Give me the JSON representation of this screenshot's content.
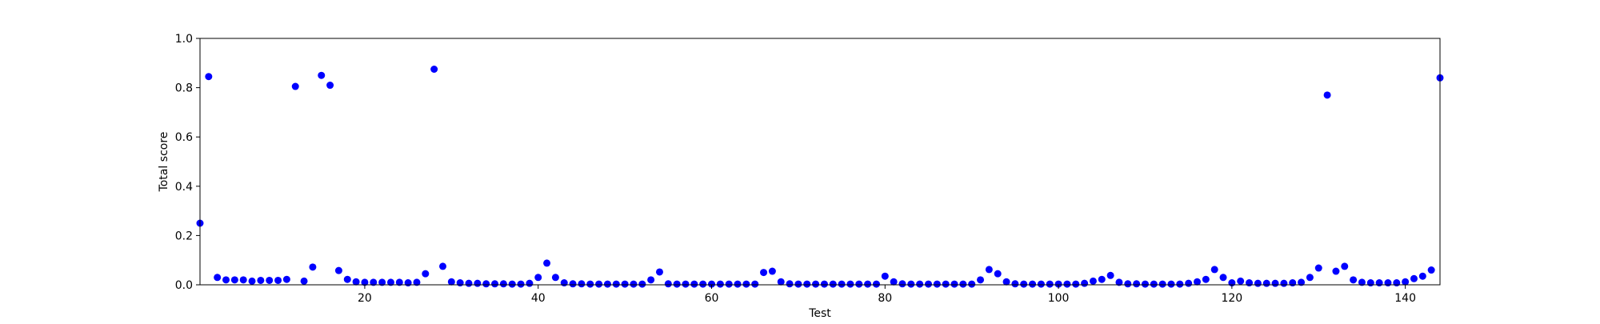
{
  "chart_data": {
    "type": "scatter",
    "title": "",
    "xlabel": "Test",
    "ylabel": "Total score",
    "xlim": [
      1,
      144
    ],
    "ylim": [
      0,
      1.0
    ],
    "grid": false,
    "legend": "none",
    "marker_color": "#0000ff",
    "x_ticks": [
      {
        "value": 20,
        "label": "20"
      },
      {
        "value": 40,
        "label": "40"
      },
      {
        "value": 60,
        "label": "60"
      },
      {
        "value": 80,
        "label": "80"
      },
      {
        "value": 100,
        "label": "100"
      },
      {
        "value": 120,
        "label": "120"
      },
      {
        "value": 140,
        "label": "140"
      }
    ],
    "y_ticks": [
      {
        "value": 0.0,
        "label": "0.0"
      },
      {
        "value": 0.2,
        "label": "0.2"
      },
      {
        "value": 0.4,
        "label": "0.4"
      },
      {
        "value": 0.6,
        "label": "0.6"
      },
      {
        "value": 0.8,
        "label": "0.8"
      },
      {
        "value": 1.0,
        "label": "1.0"
      }
    ],
    "series": [
      {
        "points": [
          [
            1,
            0.25
          ],
          [
            2,
            0.845
          ],
          [
            3,
            0.03
          ],
          [
            4,
            0.02
          ],
          [
            5,
            0.02
          ],
          [
            6,
            0.02
          ],
          [
            7,
            0.015
          ],
          [
            8,
            0.018
          ],
          [
            9,
            0.018
          ],
          [
            10,
            0.018
          ],
          [
            11,
            0.022
          ],
          [
            12,
            0.805
          ],
          [
            13,
            0.015
          ],
          [
            14,
            0.072
          ],
          [
            15,
            0.85
          ],
          [
            16,
            0.81
          ],
          [
            17,
            0.058
          ],
          [
            18,
            0.022
          ],
          [
            19,
            0.012
          ],
          [
            20,
            0.01
          ],
          [
            21,
            0.01
          ],
          [
            22,
            0.01
          ],
          [
            23,
            0.01
          ],
          [
            24,
            0.01
          ],
          [
            25,
            0.008
          ],
          [
            26,
            0.01
          ],
          [
            27,
            0.045
          ],
          [
            28,
            0.875
          ],
          [
            29,
            0.075
          ],
          [
            30,
            0.012
          ],
          [
            31,
            0.008
          ],
          [
            32,
            0.006
          ],
          [
            33,
            0.006
          ],
          [
            34,
            0.004
          ],
          [
            35,
            0.004
          ],
          [
            36,
            0.004
          ],
          [
            37,
            0.003
          ],
          [
            38,
            0.003
          ],
          [
            39,
            0.006
          ],
          [
            40,
            0.03
          ],
          [
            41,
            0.088
          ],
          [
            42,
            0.03
          ],
          [
            43,
            0.008
          ],
          [
            44,
            0.004
          ],
          [
            45,
            0.004
          ],
          [
            46,
            0.003
          ],
          [
            47,
            0.003
          ],
          [
            48,
            0.003
          ],
          [
            49,
            0.003
          ],
          [
            50,
            0.003
          ],
          [
            51,
            0.003
          ],
          [
            52,
            0.003
          ],
          [
            53,
            0.02
          ],
          [
            54,
            0.052
          ],
          [
            55,
            0.004
          ],
          [
            56,
            0.003
          ],
          [
            57,
            0.003
          ],
          [
            58,
            0.003
          ],
          [
            59,
            0.003
          ],
          [
            60,
            0.003
          ],
          [
            61,
            0.003
          ],
          [
            62,
            0.003
          ],
          [
            63,
            0.003
          ],
          [
            64,
            0.003
          ],
          [
            65,
            0.003
          ],
          [
            66,
            0.05
          ],
          [
            67,
            0.055
          ],
          [
            68,
            0.012
          ],
          [
            69,
            0.004
          ],
          [
            70,
            0.003
          ],
          [
            71,
            0.003
          ],
          [
            72,
            0.003
          ],
          [
            73,
            0.003
          ],
          [
            74,
            0.003
          ],
          [
            75,
            0.003
          ],
          [
            76,
            0.003
          ],
          [
            77,
            0.003
          ],
          [
            78,
            0.003
          ],
          [
            79,
            0.003
          ],
          [
            80,
            0.035
          ],
          [
            81,
            0.012
          ],
          [
            82,
            0.004
          ],
          [
            83,
            0.003
          ],
          [
            84,
            0.003
          ],
          [
            85,
            0.003
          ],
          [
            86,
            0.003
          ],
          [
            87,
            0.003
          ],
          [
            88,
            0.003
          ],
          [
            89,
            0.003
          ],
          [
            90,
            0.003
          ],
          [
            91,
            0.02
          ],
          [
            92,
            0.062
          ],
          [
            93,
            0.045
          ],
          [
            94,
            0.012
          ],
          [
            95,
            0.004
          ],
          [
            96,
            0.003
          ],
          [
            97,
            0.003
          ],
          [
            98,
            0.003
          ],
          [
            99,
            0.003
          ],
          [
            100,
            0.003
          ],
          [
            101,
            0.003
          ],
          [
            102,
            0.003
          ],
          [
            103,
            0.006
          ],
          [
            104,
            0.015
          ],
          [
            105,
            0.022
          ],
          [
            106,
            0.038
          ],
          [
            107,
            0.01
          ],
          [
            108,
            0.004
          ],
          [
            109,
            0.004
          ],
          [
            110,
            0.003
          ],
          [
            111,
            0.003
          ],
          [
            112,
            0.003
          ],
          [
            113,
            0.003
          ],
          [
            114,
            0.003
          ],
          [
            115,
            0.006
          ],
          [
            116,
            0.012
          ],
          [
            117,
            0.022
          ],
          [
            118,
            0.062
          ],
          [
            119,
            0.03
          ],
          [
            120,
            0.008
          ],
          [
            121,
            0.015
          ],
          [
            122,
            0.008
          ],
          [
            123,
            0.006
          ],
          [
            124,
            0.006
          ],
          [
            125,
            0.006
          ],
          [
            126,
            0.006
          ],
          [
            127,
            0.008
          ],
          [
            128,
            0.01
          ],
          [
            129,
            0.03
          ],
          [
            130,
            0.068
          ],
          [
            131,
            0.77
          ],
          [
            132,
            0.055
          ],
          [
            133,
            0.075
          ],
          [
            134,
            0.02
          ],
          [
            135,
            0.01
          ],
          [
            136,
            0.008
          ],
          [
            137,
            0.008
          ],
          [
            138,
            0.008
          ],
          [
            139,
            0.008
          ],
          [
            140,
            0.012
          ],
          [
            141,
            0.025
          ],
          [
            142,
            0.035
          ],
          [
            143,
            0.06
          ],
          [
            144,
            0.84
          ]
        ]
      }
    ]
  }
}
